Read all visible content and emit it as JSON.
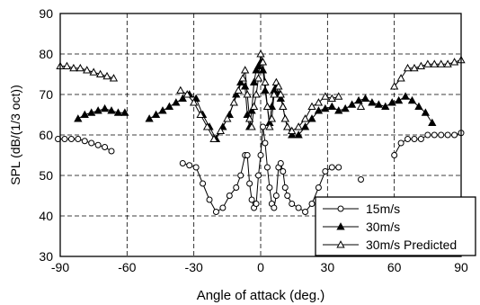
{
  "chart_data": {
    "type": "line",
    "title": "",
    "xlabel": "Angle of attack (deg.)",
    "ylabel": "SPL  (dB/(1/3 oct))",
    "xlim": [
      -90,
      90
    ],
    "ylim": [
      30,
      90
    ],
    "xticks": [
      -90,
      -60,
      -30,
      0,
      30,
      60,
      90
    ],
    "yticks": [
      30,
      40,
      50,
      60,
      70,
      80,
      90
    ],
    "grid": "dashed",
    "legend_position": "bottom-right",
    "series": [
      {
        "name": "15m/s",
        "marker": "open-circle",
        "line": true,
        "segments": [
          [
            [
              -91,
              59
            ],
            [
              -88,
              59
            ],
            [
              -85,
              59
            ],
            [
              -82,
              59
            ],
            [
              -79,
              58.5
            ],
            [
              -76,
              58
            ],
            [
              -73,
              57.5
            ],
            [
              -70,
              57
            ],
            [
              -67,
              56
            ]
          ],
          [
            [
              -35,
              53
            ],
            [
              -32,
              52.5
            ],
            [
              -29,
              52
            ],
            [
              -26,
              48
            ],
            [
              -23,
              44
            ],
            [
              -20,
              41
            ],
            [
              -17,
              42
            ],
            [
              -14,
              45
            ],
            [
              -11,
              47
            ],
            [
              -9,
              50
            ],
            [
              -7,
              55
            ],
            [
              -6,
              55
            ],
            [
              -5,
              48
            ],
            [
              -4,
              44
            ],
            [
              -3,
              42
            ],
            [
              -2,
              43
            ],
            [
              -1,
              50
            ],
            [
              0,
              55
            ],
            [
              1,
              62
            ],
            [
              2,
              58
            ],
            [
              3,
              52
            ],
            [
              4,
              47
            ],
            [
              5,
              43
            ],
            [
              6,
              42
            ],
            [
              7,
              45
            ],
            [
              8,
              52
            ],
            [
              9,
              53
            ],
            [
              10,
              51
            ],
            [
              11,
              47
            ],
            [
              12,
              45
            ],
            [
              14,
              43
            ],
            [
              17,
              42
            ],
            [
              20,
              41
            ],
            [
              23,
              43
            ],
            [
              26,
              47
            ],
            [
              29,
              51
            ],
            [
              32,
              52
            ],
            [
              35,
              52
            ]
          ],
          [
            [
              45,
              49
            ]
          ],
          [
            [
              60,
              55
            ],
            [
              63,
              58
            ],
            [
              66,
              59
            ],
            [
              69,
              59
            ],
            [
              72,
              59
            ],
            [
              75,
              60
            ],
            [
              78,
              60
            ],
            [
              81,
              60
            ],
            [
              84,
              60
            ],
            [
              87,
              60
            ],
            [
              90,
              60.5
            ]
          ]
        ]
      },
      {
        "name": "30m/s",
        "marker": "filled-triangle",
        "line": true,
        "segments": [
          [
            [
              -82,
              64
            ],
            [
              -79,
              65
            ],
            [
              -76,
              65.5
            ],
            [
              -73,
              66
            ],
            [
              -70,
              66.5
            ],
            [
              -67,
              66
            ],
            [
              -64,
              65.5
            ],
            [
              -61,
              65.5
            ]
          ],
          [
            [
              -50,
              64
            ],
            [
              -47,
              65
            ],
            [
              -44,
              66
            ],
            [
              -41,
              67
            ],
            [
              -38,
              68
            ],
            [
              -35,
              69
            ],
            [
              -32,
              70
            ],
            [
              -29,
              69
            ],
            [
              -26,
              65
            ],
            [
              -23,
              62
            ],
            [
              -20,
              59
            ],
            [
              -17,
              62
            ],
            [
              -14,
              65
            ],
            [
              -11,
              70
            ],
            [
              -9,
              73
            ],
            [
              -7,
              72
            ],
            [
              -6,
              65
            ],
            [
              -5,
              62
            ],
            [
              -4,
              66
            ],
            [
              -3,
              73
            ],
            [
              -2,
              76
            ],
            [
              -1,
              77
            ],
            [
              0,
              78
            ],
            [
              1,
              76
            ],
            [
              2,
              71
            ],
            [
              3,
              67
            ],
            [
              4,
              63
            ],
            [
              5,
              67
            ],
            [
              6,
              71
            ],
            [
              7,
              72
            ],
            [
              8,
              70
            ],
            [
              9,
              69
            ],
            [
              10,
              67
            ],
            [
              11,
              64
            ],
            [
              12,
              62
            ],
            [
              14,
              60
            ],
            [
              17,
              60
            ],
            [
              20,
              62
            ],
            [
              23,
              64
            ],
            [
              26,
              66
            ],
            [
              29,
              66.5
            ],
            [
              32,
              67
            ],
            [
              35,
              66
            ],
            [
              38,
              66.5
            ],
            [
              41,
              67.5
            ],
            [
              44,
              68.5
            ],
            [
              47,
              69
            ],
            [
              50,
              68
            ],
            [
              53,
              67.5
            ],
            [
              56,
              67
            ],
            [
              59,
              68
            ],
            [
              62,
              68.5
            ],
            [
              65,
              69.5
            ],
            [
              68,
              68.5
            ],
            [
              71,
              67
            ],
            [
              74,
              65.5
            ],
            [
              77,
              63
            ]
          ]
        ]
      },
      {
        "name": "30m/s Predicted",
        "marker": "open-triangle",
        "line": true,
        "segments": [
          [
            [
              -90,
              77
            ],
            [
              -87,
              77
            ],
            [
              -84,
              76.5
            ],
            [
              -81,
              76.5
            ],
            [
              -78,
              76
            ],
            [
              -75,
              75.5
            ],
            [
              -72,
              75
            ],
            [
              -69,
              74.5
            ],
            [
              -66,
              74
            ]
          ],
          [
            [
              -36,
              71
            ],
            [
              -33,
              70
            ],
            [
              -30,
              68
            ],
            [
              -27,
              65
            ],
            [
              -24,
              62
            ],
            [
              -21,
              59
            ],
            [
              -18,
              61
            ],
            [
              -15,
              64
            ],
            [
              -12,
              68
            ],
            [
              -10,
              71
            ],
            [
              -8,
              74
            ],
            [
              -7,
              76
            ],
            [
              -6,
              70
            ],
            [
              -5,
              64
            ],
            [
              -4,
              62
            ],
            [
              -3,
              67
            ],
            [
              -2,
              70
            ],
            [
              -1,
              74
            ],
            [
              0,
              80
            ],
            [
              1,
              78
            ],
            [
              2,
              73
            ],
            [
              3,
              67
            ],
            [
              4,
              62
            ],
            [
              5,
              64
            ],
            [
              6,
              70
            ],
            [
              7,
              73
            ],
            [
              8,
              72
            ],
            [
              9,
              70
            ],
            [
              10,
              67
            ],
            [
              11,
              64
            ],
            [
              12,
              62
            ],
            [
              14,
              61
            ],
            [
              17,
              62
            ],
            [
              20,
              64
            ],
            [
              23,
              67
            ],
            [
              26,
              68
            ],
            [
              29,
              69.5
            ],
            [
              32,
              69
            ],
            [
              35,
              69.5
            ]
          ],
          [
            [
              45,
              67
            ]
          ],
          [
            [
              60,
              72
            ],
            [
              63,
              74
            ],
            [
              66,
              76.5
            ],
            [
              69,
              76.5
            ],
            [
              72,
              77
            ],
            [
              75,
              77.5
            ],
            [
              78,
              77.5
            ],
            [
              81,
              77.5
            ],
            [
              84,
              77.5
            ],
            [
              87,
              78
            ],
            [
              90,
              78.5
            ]
          ]
        ]
      }
    ]
  }
}
